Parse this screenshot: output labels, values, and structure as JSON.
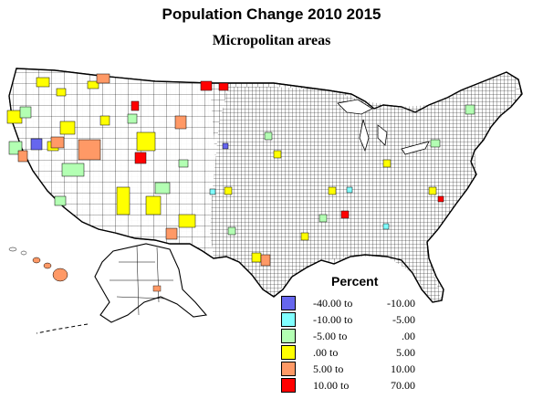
{
  "title": "Population Change 2010 2015",
  "subtitle": "Micropolitan areas",
  "legend": {
    "title": "Percent",
    "items": [
      {
        "from": "-40.00 to",
        "to": "-10.00",
        "color": "#6666ee"
      },
      {
        "from": "-10.00 to",
        "to": "-5.00",
        "color": "#80ffff"
      },
      {
        "from": "-5.00 to",
        "to": ".00",
        "color": "#b3ffb3"
      },
      {
        "from": ".00 to",
        "to": "5.00",
        "color": "#ffff00"
      },
      {
        "from": "5.00 to",
        "to": "10.00",
        "color": "#ff9966"
      },
      {
        "from": "10.00 to",
        "to": "70.00",
        "color": "#ff0000"
      }
    ]
  },
  "colors": {
    "border": "#000000",
    "fill_default": "#ffffff"
  }
}
